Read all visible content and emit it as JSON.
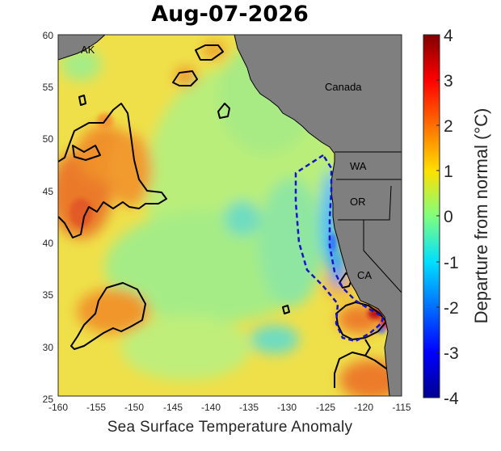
{
  "title": "Aug-07-2026",
  "xaxis": {
    "label": "Sea Surface Temperature Anomaly",
    "ticks": [
      "-160",
      "-155",
      "-150",
      "-145",
      "-140",
      "-135",
      "-130",
      "-125",
      "-120",
      "-115"
    ]
  },
  "yaxis": {
    "ticks": [
      "60",
      "55",
      "50",
      "45",
      "40",
      "35",
      "30",
      "25"
    ]
  },
  "colorbar": {
    "label": "Departure from normal (°C)",
    "ticks": [
      "4",
      "3",
      "2",
      "1",
      "0",
      "-1",
      "-2",
      "-3",
      "-4"
    ],
    "range": [
      -4,
      4
    ]
  },
  "regions": {
    "ak": "AK",
    "canada": "Canada",
    "wa": "WA",
    "or": "OR",
    "ca": "CA"
  },
  "colors": {
    "land": "#7f7f7f",
    "ocean_base": "#f2e23a",
    "warm": "#e8632a",
    "cool": "#4fd0d8",
    "contour": "#000000",
    "boundary": "#1414c8"
  }
}
